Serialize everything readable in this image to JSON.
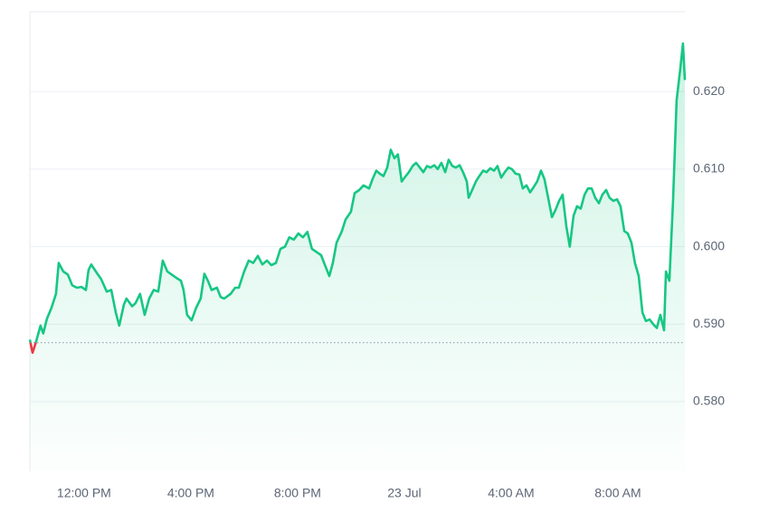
{
  "chart_data": {
    "type": "line",
    "x": [
      -2.03,
      -1.93,
      -1.8,
      -1.63,
      -1.53,
      -1.39,
      -1.22,
      -1.05,
      -0.95,
      -0.78,
      -0.61,
      -0.44,
      -0.27,
      -0.1,
      0.07,
      0.17,
      0.27,
      0.44,
      0.64,
      0.85,
      1.02,
      1.19,
      1.32,
      1.49,
      1.59,
      1.8,
      1.93,
      2.1,
      2.27,
      2.44,
      2.61,
      2.78,
      2.95,
      3.12,
      3.36,
      3.53,
      3.63,
      3.73,
      3.86,
      4.03,
      4.2,
      4.37,
      4.51,
      4.64,
      4.78,
      4.98,
      5.12,
      5.25,
      5.49,
      5.66,
      5.8,
      6.0,
      6.17,
      6.34,
      6.51,
      6.68,
      6.85,
      7.02,
      7.19,
      7.36,
      7.53,
      7.69,
      7.86,
      8.03,
      8.2,
      8.37,
      8.54,
      8.71,
      8.88,
      9.05,
      9.19,
      9.32,
      9.46,
      9.66,
      9.8,
      10.0,
      10.14,
      10.31,
      10.47,
      10.68,
      10.81,
      10.95,
      11.08,
      11.22,
      11.36,
      11.49,
      11.63,
      11.76,
      11.9,
      12.03,
      12.17,
      12.31,
      12.44,
      12.58,
      12.71,
      12.85,
      12.98,
      13.12,
      13.25,
      13.39,
      13.53,
      13.66,
      13.8,
      13.93,
      14.07,
      14.2,
      14.34,
      14.41,
      14.54,
      14.68,
      14.81,
      14.95,
      15.08,
      15.22,
      15.36,
      15.49,
      15.63,
      15.76,
      15.9,
      16.03,
      16.17,
      16.31,
      16.44,
      16.58,
      16.71,
      16.85,
      16.98,
      17.12,
      17.25,
      17.39,
      17.53,
      17.66,
      17.8,
      17.93,
      18.07,
      18.2,
      18.34,
      18.47,
      18.61,
      18.75,
      18.88,
      19.02,
      19.15,
      19.29,
      19.42,
      19.56,
      19.69,
      19.83,
      19.97,
      20.1,
      20.24,
      20.37,
      20.51,
      20.64,
      20.78,
      20.92,
      21.05,
      21.19,
      21.32,
      21.46,
      21.59,
      21.73,
      21.8,
      21.93,
      22.07,
      22.2,
      22.34,
      22.44,
      22.51
    ],
    "values": [
      0.588,
      0.5863,
      0.5877,
      0.5898,
      0.5888,
      0.5907,
      0.5921,
      0.5939,
      0.5979,
      0.5968,
      0.5964,
      0.595,
      0.5947,
      0.5948,
      0.5944,
      0.597,
      0.5977,
      0.5968,
      0.5958,
      0.5942,
      0.5944,
      0.5915,
      0.5898,
      0.5925,
      0.5933,
      0.5923,
      0.5927,
      0.5939,
      0.5912,
      0.5933,
      0.5944,
      0.5942,
      0.5982,
      0.5968,
      0.5962,
      0.5958,
      0.5956,
      0.5944,
      0.5912,
      0.5905,
      0.5921,
      0.5933,
      0.5965,
      0.5956,
      0.5944,
      0.5947,
      0.5935,
      0.5933,
      0.5939,
      0.5947,
      0.5947,
      0.5968,
      0.5982,
      0.5979,
      0.5988,
      0.5977,
      0.5982,
      0.5976,
      0.5979,
      0.5997,
      0.6,
      0.6012,
      0.6009,
      0.6017,
      0.6012,
      0.6019,
      0.5997,
      0.5993,
      0.5989,
      0.5974,
      0.5962,
      0.5979,
      0.6005,
      0.602,
      0.6035,
      0.6045,
      0.6069,
      0.6073,
      0.6079,
      0.6075,
      0.6087,
      0.6098,
      0.6094,
      0.6091,
      0.6102,
      0.6125,
      0.6114,
      0.6119,
      0.6084,
      0.609,
      0.6096,
      0.6104,
      0.6108,
      0.6102,
      0.6096,
      0.6104,
      0.6102,
      0.6105,
      0.61,
      0.6108,
      0.6096,
      0.6112,
      0.6104,
      0.6102,
      0.6105,
      0.6096,
      0.6084,
      0.6063,
      0.6073,
      0.6084,
      0.6091,
      0.6098,
      0.6096,
      0.6101,
      0.6098,
      0.6104,
      0.6089,
      0.6096,
      0.6102,
      0.61,
      0.6094,
      0.6093,
      0.6075,
      0.6079,
      0.607,
      0.6077,
      0.6084,
      0.6098,
      0.6087,
      0.6063,
      0.6038,
      0.6047,
      0.6059,
      0.6067,
      0.6026,
      0.6,
      0.604,
      0.6052,
      0.6049,
      0.6067,
      0.6075,
      0.6075,
      0.6063,
      0.6056,
      0.6067,
      0.6073,
      0.6063,
      0.6059,
      0.6061,
      0.6052,
      0.602,
      0.6017,
      0.6005,
      0.5979,
      0.5962,
      0.5915,
      0.5904,
      0.5906,
      0.59,
      0.5895,
      0.5912,
      0.5892,
      0.5968,
      0.5956,
      0.6061,
      0.6189,
      0.623,
      0.6262,
      0.6215
    ],
    "color": "#16c784",
    "negative_color": "#ea3943",
    "baseline": 0.5876,
    "xlim": [
      -2.03,
      22.51
    ],
    "ylim": [
      0.571,
      0.6303
    ],
    "xticks": [
      {
        "value": 0,
        "label": "12:00 PM"
      },
      {
        "value": 4,
        "label": "4:00 PM"
      },
      {
        "value": 8,
        "label": "8:00 PM"
      },
      {
        "value": 12,
        "label": "23 Jul"
      },
      {
        "value": 16,
        "label": "4:00 AM"
      },
      {
        "value": 20,
        "label": "8:00 AM"
      }
    ],
    "yticks": [
      {
        "value": 0.58,
        "label": "0.580"
      },
      {
        "value": 0.59,
        "label": "0.590"
      },
      {
        "value": 0.6,
        "label": "0.600"
      },
      {
        "value": 0.61,
        "label": "0.610"
      },
      {
        "value": 0.62,
        "label": "0.620"
      }
    ],
    "grid": true
  }
}
